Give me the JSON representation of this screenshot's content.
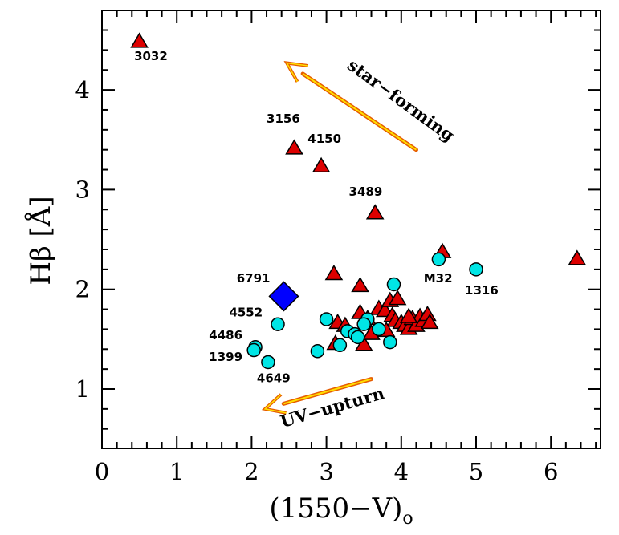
{
  "chart_data": {
    "type": "scatter",
    "xlabel": "(1550−V)",
    "xlabel_subscript": "o",
    "ylabel": "Hβ  [Å]",
    "xlim": [
      0,
      6.7
    ],
    "ylim": [
      0.4,
      4.8
    ],
    "x_ticks": [
      0,
      1,
      2,
      3,
      4,
      5,
      6
    ],
    "y_ticks": [
      1,
      2,
      3,
      4
    ],
    "x_minor_step": 0.2,
    "y_minor_step": 0.2,
    "grid": false,
    "series": [
      {
        "marker": "triangle",
        "color": "#dd0000",
        "points": [
          [
            0.5,
            4.48
          ],
          [
            2.57,
            3.41
          ],
          [
            2.93,
            3.23
          ],
          [
            3.65,
            2.76
          ],
          [
            4.55,
            2.37
          ],
          [
            6.35,
            2.3
          ],
          [
            3.1,
            2.15
          ],
          [
            3.45,
            2.03
          ],
          [
            3.15,
            1.66
          ],
          [
            3.25,
            1.63
          ],
          [
            3.12,
            1.45
          ],
          [
            3.5,
            1.44
          ],
          [
            3.45,
            1.76
          ],
          [
            3.55,
            1.7
          ],
          [
            3.7,
            1.8
          ],
          [
            3.78,
            1.78
          ],
          [
            3.85,
            1.88
          ],
          [
            3.95,
            1.9
          ],
          [
            3.88,
            1.73
          ],
          [
            3.92,
            1.68
          ],
          [
            4.0,
            1.66
          ],
          [
            4.05,
            1.63
          ],
          [
            4.1,
            1.6
          ],
          [
            4.15,
            1.7
          ],
          [
            4.2,
            1.63
          ],
          [
            4.25,
            1.72
          ],
          [
            4.3,
            1.68
          ],
          [
            4.35,
            1.74
          ],
          [
            4.38,
            1.66
          ],
          [
            4.1,
            1.72
          ],
          [
            3.6,
            1.55
          ],
          [
            3.8,
            1.58
          ]
        ]
      },
      {
        "marker": "circle",
        "color": "#00e5e5",
        "points": [
          [
            4.5,
            2.3
          ],
          [
            5.0,
            2.2
          ],
          [
            3.9,
            2.05
          ],
          [
            2.35,
            1.65
          ],
          [
            2.05,
            1.42
          ],
          [
            2.03,
            1.39
          ],
          [
            2.22,
            1.27
          ],
          [
            2.88,
            1.38
          ],
          [
            3.0,
            1.7
          ],
          [
            3.18,
            1.44
          ],
          [
            3.28,
            1.58
          ],
          [
            3.38,
            1.55
          ],
          [
            3.42,
            1.52
          ],
          [
            3.55,
            1.7
          ],
          [
            3.5,
            1.65
          ],
          [
            3.7,
            1.6
          ],
          [
            3.85,
            1.47
          ]
        ]
      },
      {
        "marker": "diamond",
        "color": "#0000ff",
        "points": [
          [
            2.43,
            1.93
          ]
        ]
      }
    ],
    "annotations": [
      {
        "text": "3032",
        "x": 0.43,
        "y": 4.3
      },
      {
        "text": "3156",
        "x": 2.2,
        "y": 3.67
      },
      {
        "text": "4150",
        "x": 2.75,
        "y": 3.47
      },
      {
        "text": "3489",
        "x": 3.3,
        "y": 2.94
      },
      {
        "text": "6791",
        "x": 1.8,
        "y": 2.07
      },
      {
        "text": "4552",
        "x": 1.7,
        "y": 1.73
      },
      {
        "text": "4486",
        "x": 1.43,
        "y": 1.5
      },
      {
        "text": "1399",
        "x": 1.43,
        "y": 1.28
      },
      {
        "text": "4649",
        "x": 2.07,
        "y": 1.07
      },
      {
        "text": "M32",
        "x": 4.3,
        "y": 2.07
      },
      {
        "text": "1316",
        "x": 4.85,
        "y": 1.95
      }
    ],
    "arrows": [
      {
        "label": "star−forming",
        "from": [
          4.2,
          3.4
        ],
        "to": [
          2.47,
          4.27
        ],
        "label_x": 3.95,
        "label_y": 3.85,
        "label_angle": 36
      },
      {
        "label": "UV−upturn",
        "from": [
          3.6,
          1.1
        ],
        "to": [
          2.18,
          0.8
        ],
        "label_x": 3.1,
        "label_y": 0.76,
        "label_angle": -16
      }
    ]
  }
}
